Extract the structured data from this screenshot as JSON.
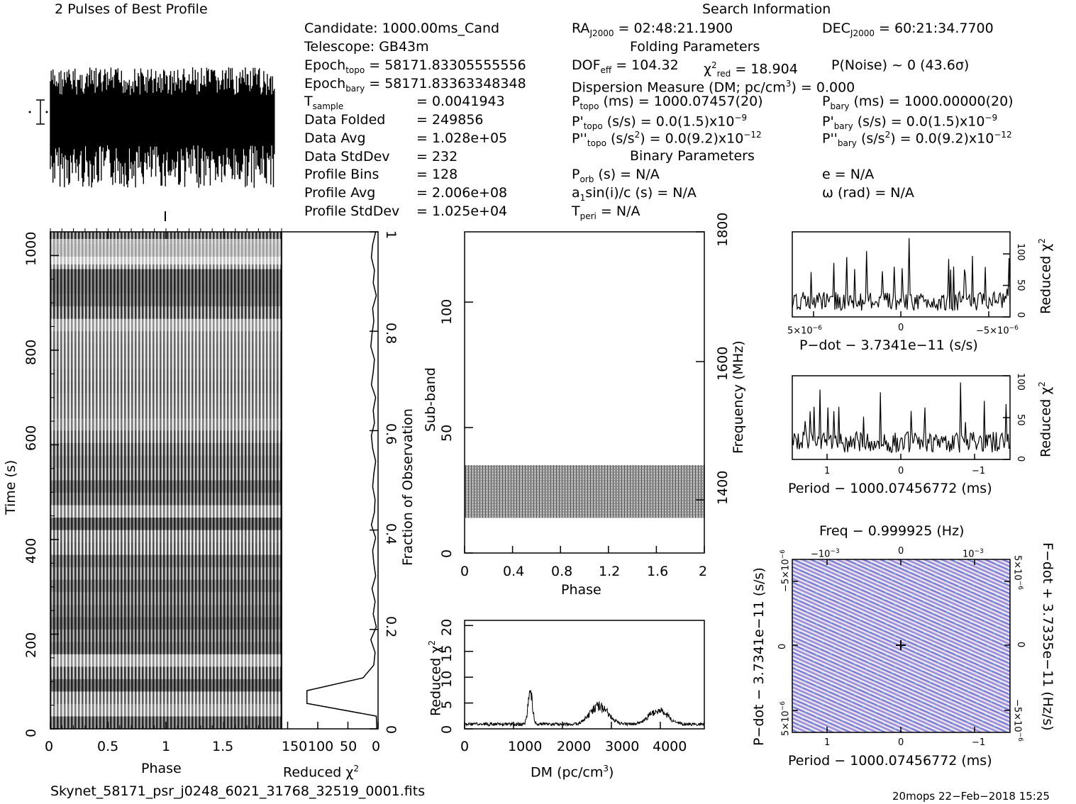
{
  "profile_title": "2 Pulses of Best Profile",
  "search_title": "Search Information",
  "folding_title": "Folding Parameters",
  "binary_title": "Binary Parameters",
  "info": {
    "candidate": "Candidate:   1000.00ms_Cand",
    "telescope": "Telescope:   GB43m",
    "epoch_topo_lbl": "Epoch",
    "epoch_topo_sub": "topo",
    "epoch_topo_val": " = 58171.83305555556",
    "epoch_bary_lbl": "Epoch",
    "epoch_bary_sub": "bary",
    "epoch_bary_val": " = 58171.83363348348",
    "t_sample_lbl": "T",
    "t_sample_sub": "sample",
    "t_sample_val": "=   0.0041943",
    "data_folded_lbl": "Data Folded",
    "data_folded_val": "=   249856",
    "data_avg_lbl": "Data Avg",
    "data_avg_val": "=   1.028e+05",
    "data_std_lbl": "Data StdDev",
    "data_std_val": "=   232",
    "prof_bins_lbl": "Profile Bins",
    "prof_bins_val": "=   128",
    "prof_avg_lbl": "Profile Avg",
    "prof_avg_val": "=   2.006e+08",
    "prof_std_lbl": "Profile StdDev",
    "prof_std_val": "=   1.025e+04"
  },
  "search": {
    "ra": "RA",
    "ra_sub": "J2000",
    "ra_val": " = 02:48:21.1900",
    "dec": "DEC",
    "dec_sub": "J2000",
    "dec_val": " = 60:21:34.7700",
    "dof": "DOF",
    "dof_sub": "eff",
    "dof_val": " = 104.32",
    "chi": "χ",
    "chi_sup": "2",
    "chi_sub": "red",
    "chi_val": " = 18.904",
    "pnoise": "P(Noise) ~ 0    (43.6σ)",
    "dm_line": "Dispersion Measure (DM; pc/cm",
    "dm_sup": "3",
    "dm_val": ") = 0.000",
    "ptopo": "P",
    "ptopo_sub": "topo",
    "ptopo_val": " (ms) =  1000.07457(20)",
    "pbary": "P",
    "pbary_sub": "bary",
    "pbary_val": " (ms) =  1000.00000(20)",
    "pdtopo": "P'",
    "pdtopo_sub": "topo",
    "pdtopo_val": " (s/s) = 0.0(1.5)x10",
    "pdtopo_exp": "−9",
    "pdbary": "P'",
    "pdbary_sub": "bary",
    "pdbary_val": " (s/s) = 0.0(1.5)x10",
    "pdbary_exp": "−9",
    "pddtopo": "P''",
    "pddtopo_sub": "topo",
    "pddtopo_val": " (s/s",
    "pddtopo_sup": "2",
    "pddtopo_val2": ") = 0.0(9.2)x10",
    "pddtopo_exp": "−12",
    "pddbary": "P''",
    "pddbary_sub": "bary",
    "pddbary_val": " (s/s",
    "pddbary_sup": "2",
    "pddbary_val2": ") = 0.0(9.2)x10",
    "pddbary_exp": "−12",
    "porb": "P",
    "porb_sub": "orb",
    "porb_val": " (s) = N/A",
    "ecc": "e = N/A",
    "asini": "a",
    "asini_sub": "1",
    "asini_val": "sin(i)/c (s) = N/A",
    "omega": "ω (rad) = N/A",
    "tperi": "T",
    "tperi_sub": "peri",
    "tperi_val": " = N/A"
  },
  "footer": {
    "filename": "Skynet_58171_psr_j0248_6021_31768_32519_0001.fits",
    "stamp": "20mops 22−Feb−2018 15:25"
  },
  "chart_data": [
    {
      "id": "profile",
      "type": "line",
      "title": "2 Pulses of Best Profile",
      "xlim": [
        0,
        2
      ],
      "description_values": "noisy dense profile, no pulse",
      "n_points": 256
    },
    {
      "id": "time_phase",
      "type": "heatmap",
      "xlabel": "Phase",
      "ylabel": "Time (s)",
      "xlim": [
        0,
        2
      ],
      "ylim": [
        0,
        1050
      ],
      "xticks": [
        "0",
        "0.5",
        "1",
        "1.5"
      ],
      "yticks": [
        "0",
        "200",
        "400",
        "600",
        "800",
        "1000"
      ]
    },
    {
      "id": "time_chi",
      "type": "line",
      "xlabel": "Reduced χ",
      "xlabel_sup": "2",
      "ylabel_right": "Fraction of Observation",
      "xticks": [
        "150",
        "100",
        "50",
        "0"
      ],
      "yticks": [
        "0",
        "0.2",
        "0.4",
        "0.6",
        "0.8",
        "1"
      ],
      "xlim": [
        160,
        0
      ],
      "x": [
        2,
        3,
        6,
        4,
        10,
        7,
        5,
        12,
        3,
        8,
        5,
        10,
        4,
        7,
        9,
        4,
        11,
        6,
        5,
        9,
        7,
        4,
        9,
        11,
        6,
        8,
        4,
        11,
        8,
        6,
        12,
        10,
        7,
        9,
        3,
        8,
        6,
        11,
        9,
        4
      ],
      "y_note": "y spans 0..1 fraction, sharp dip near 0.06"
    },
    {
      "id": "subband_phase",
      "type": "heatmap",
      "xlabel": "Phase",
      "ylabel": "Sub-band",
      "ylabel_right": "Frequency (MHz)",
      "xticks": [
        "0",
        "0.4",
        "0.8",
        "1.2",
        "1.6",
        "2"
      ],
      "yticks": [
        "0",
        "50",
        "100"
      ],
      "yticks_right": [
        "1400",
        "1600",
        "1800"
      ],
      "xlim": [
        0,
        2
      ],
      "ylim": [
        0,
        128
      ],
      "band_rows": [
        14,
        35
      ]
    },
    {
      "id": "dm_chi",
      "type": "line",
      "xlabel": "DM (pc/cm",
      "xlabel_sup": "3",
      "xlabel_end": ")",
      "ylabel": "Reduced χ",
      "ylabel_sup": "2",
      "xticks": [
        "0",
        "1000",
        "2000",
        "3000",
        "4000"
      ],
      "yticks": [
        "0",
        "5",
        "10",
        "15",
        "20"
      ],
      "xlim": [
        0,
        4900
      ],
      "ylim": [
        0,
        21
      ],
      "peaks": [
        {
          "x": 1340,
          "y": 9
        },
        {
          "x": 2750,
          "y": 4.5
        },
        {
          "x": 3950,
          "y": 3.5
        }
      ]
    },
    {
      "id": "pdot_chi",
      "type": "line",
      "xlabel": "P−dot − 3.7341e−11 (s/s)",
      "ylabel": "Reduced χ",
      "ylabel_sup": "2",
      "xticks": [
        "5×10",
        "0",
        "−5×10"
      ],
      "xtick_exp": "−6",
      "yticks": [
        "0",
        "50",
        "100"
      ],
      "ylim": [
        0,
        135
      ]
    },
    {
      "id": "period_chi",
      "type": "line",
      "xlabel": "Period − 1000.07456772 (ms)",
      "ylabel": "Reduced χ",
      "ylabel_sup": "2",
      "xticks": [
        "1",
        "0",
        "−1"
      ],
      "yticks": [
        "0",
        "50",
        "100"
      ],
      "ylim": [
        0,
        100
      ]
    },
    {
      "id": "period_pdot",
      "type": "heatmap",
      "title": "Freq − 0.999925 (Hz)",
      "xlabel": "Period − 1000.07456772 (ms)",
      "ylabel": "P−dot − 3.7341e−11 (s/s)",
      "ylabel_right": "F−dot + 3.7335e−11 (Hz/s)",
      "xticks": [
        "1",
        "0",
        "−1"
      ],
      "top_ticks": [
        "−10",
        "0",
        "10"
      ],
      "top_exp": "−3",
      "yticks": [
        "5×10",
        "0",
        "−5×10"
      ],
      "ytick_exp": "−6",
      "rticks": [
        "−5×10",
        "0",
        "5×10"
      ],
      "rtick_exp": "−6"
    }
  ]
}
